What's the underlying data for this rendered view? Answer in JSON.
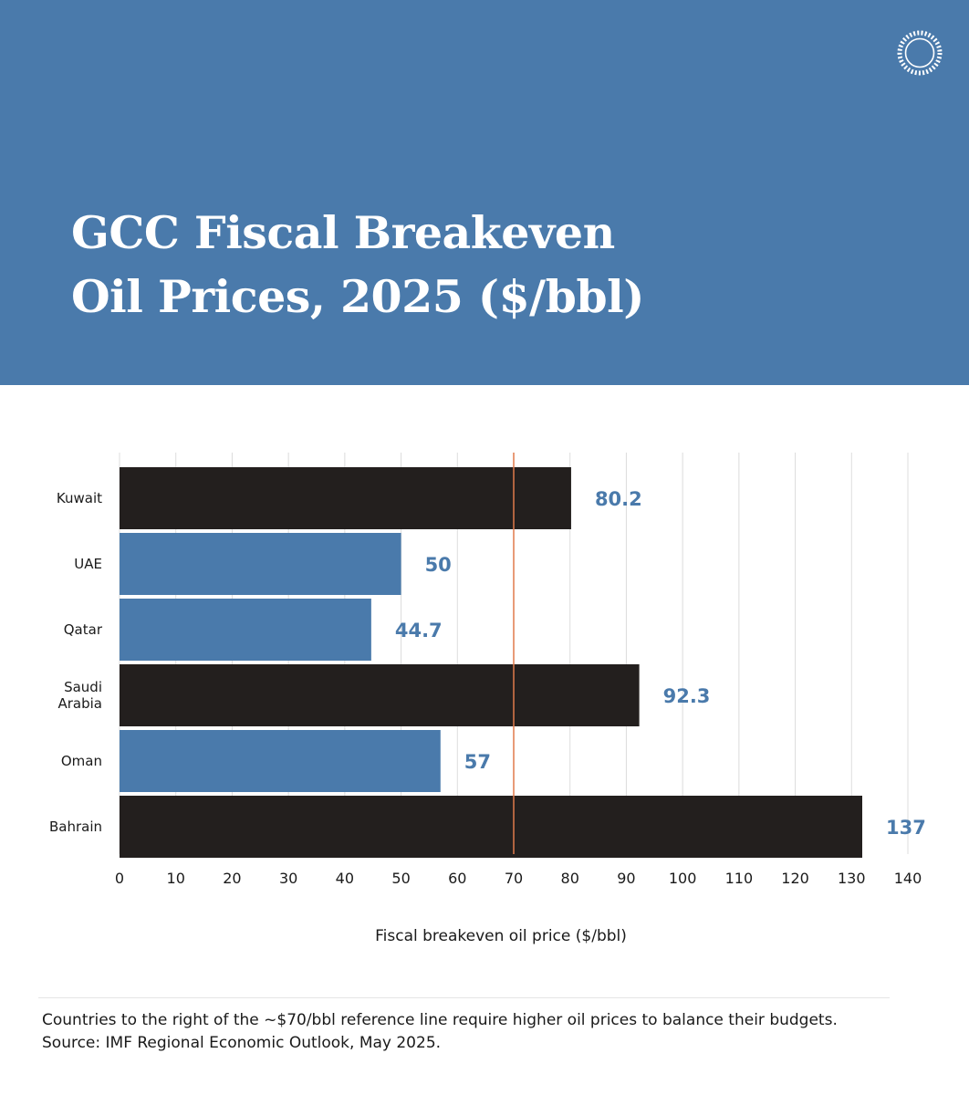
{
  "header": {
    "title_line1": "GCC Fiscal Breakeven",
    "title_line2": "Oil Prices, 2025 ($/bbl)",
    "background_color": "#4a7aab",
    "logo_icon": "circular-seal-logo"
  },
  "chart_data": {
    "type": "bar",
    "orientation": "horizontal",
    "categories": [
      "Kuwait",
      "UAE",
      "Qatar",
      "Saudi Arabia",
      "Oman",
      "Bahrain"
    ],
    "category_labels": [
      [
        "Kuwait"
      ],
      [
        "UAE"
      ],
      [
        "Qatar"
      ],
      [
        "Saudi",
        "Arabia"
      ],
      [
        "Oman"
      ],
      [
        "Bahrain"
      ]
    ],
    "values": [
      80.2,
      50,
      44.7,
      92.3,
      57,
      137
    ],
    "value_labels": [
      "80.2",
      "50",
      "44.7",
      "92.3",
      "57",
      "137"
    ],
    "bar_colors": [
      "#231f1e",
      "#4a7aab",
      "#4a7aab",
      "#231f1e",
      "#4a7aab",
      "#231f1e"
    ],
    "label_color": "#4a7aab",
    "xlabel": "Fiscal breakeven oil price ($/bbl)",
    "ylabel": "",
    "xlim": [
      0,
      140
    ],
    "xticks": [
      0,
      10,
      20,
      30,
      40,
      50,
      60,
      70,
      80,
      90,
      100,
      110,
      120,
      130,
      140
    ],
    "grid": true,
    "reference_line": {
      "value": 70,
      "color": "#e07a4c"
    }
  },
  "footer": {
    "note": "Countries to the right of the ~$70/bbl reference line require higher oil prices to balance their budgets.",
    "source": "Source: IMF Regional Economic Outlook, May 2025."
  }
}
